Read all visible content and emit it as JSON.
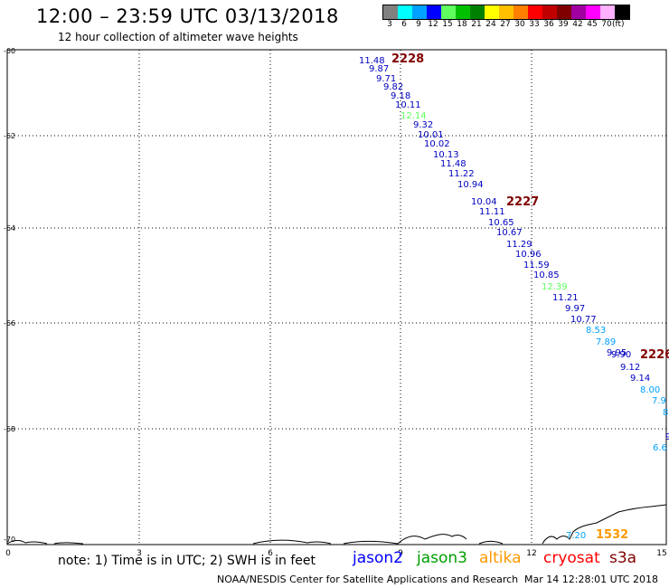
{
  "header": {
    "title": "12:00 – 23:59 UTC 03/13/2018",
    "subtitle": "12 hour collection of altimeter wave heights"
  },
  "legend": {
    "unit": "(ft)",
    "bins": [
      {
        "label": "3",
        "color": "#808080"
      },
      {
        "label": "6",
        "color": "#00ffff"
      },
      {
        "label": "9",
        "color": "#00a0ff"
      },
      {
        "label": "12",
        "color": "#0000ff"
      },
      {
        "label": "15",
        "color": "#60ff60"
      },
      {
        "label": "18",
        "color": "#00c000"
      },
      {
        "label": "21",
        "color": "#008000"
      },
      {
        "label": "24",
        "color": "#ffff00"
      },
      {
        "label": "27",
        "color": "#ffc000"
      },
      {
        "label": "30",
        "color": "#ff8000"
      },
      {
        "label": "33",
        "color": "#ff0000"
      },
      {
        "label": "36",
        "color": "#c00000"
      },
      {
        "label": "39",
        "color": "#800000"
      },
      {
        "label": "42",
        "color": "#a000a0"
      },
      {
        "label": "45",
        "color": "#ff00ff"
      },
      {
        "label": "70",
        "color": "#ffb0ff"
      },
      {
        "label": "",
        "color": "#000000"
      }
    ]
  },
  "axes": {
    "lat_labels": [
      "-60",
      "-62",
      "-64",
      "-66",
      "-68",
      "-70"
    ],
    "lon_labels": [
      "0",
      "3",
      "6",
      "9",
      "12",
      "15"
    ]
  },
  "passes": [
    {
      "time": "2228",
      "color": "#800000"
    },
    {
      "time": "2227",
      "color": "#800000"
    },
    {
      "time": "2226",
      "color": "#800000"
    },
    {
      "time": "1532",
      "color": "#ff9900"
    }
  ],
  "observations": [
    {
      "value": "11.48",
      "color": "#0000c0"
    },
    {
      "value": "9.87",
      "color": "#0000c0"
    },
    {
      "value": "9.71",
      "color": "#0000c0"
    },
    {
      "value": "9.82",
      "color": "#0000c0"
    },
    {
      "value": "9.18",
      "color": "#0000c0"
    },
    {
      "value": "10.11",
      "color": "#0000c0"
    },
    {
      "value": "12.14",
      "color": "#60ff60"
    },
    {
      "value": "9.32",
      "color": "#0000c0"
    },
    {
      "value": "10.01",
      "color": "#0000c0"
    },
    {
      "value": "10.02",
      "color": "#0000c0"
    },
    {
      "value": "10.13",
      "color": "#0000c0"
    },
    {
      "value": "11.48",
      "color": "#0000c0"
    },
    {
      "value": "11.22",
      "color": "#0000c0"
    },
    {
      "value": "10.94",
      "color": "#0000c0"
    },
    {
      "value": "10.04",
      "color": "#0000c0"
    },
    {
      "value": "11.11",
      "color": "#0000c0"
    },
    {
      "value": "10.65",
      "color": "#0000c0"
    },
    {
      "value": "10.67",
      "color": "#0000c0"
    },
    {
      "value": "11.29",
      "color": "#0000c0"
    },
    {
      "value": "10.96",
      "color": "#0000c0"
    },
    {
      "value": "11.59",
      "color": "#0000c0"
    },
    {
      "value": "10.85",
      "color": "#0000c0"
    },
    {
      "value": "12.39",
      "color": "#60ff60"
    },
    {
      "value": "11.21",
      "color": "#0000c0"
    },
    {
      "value": "9.97",
      "color": "#0000c0"
    },
    {
      "value": "10.77",
      "color": "#0000c0"
    },
    {
      "value": "8.53",
      "color": "#00a0ff"
    },
    {
      "value": "7.89",
      "color": "#00a0ff"
    },
    {
      "value": "9.95",
      "color": "#0000c0"
    },
    {
      "value": "9.90",
      "color": "#0000c0"
    },
    {
      "value": "9.12",
      "color": "#0000c0"
    },
    {
      "value": "9.14",
      "color": "#0000c0"
    },
    {
      "value": "8.00",
      "color": "#00a0ff"
    },
    {
      "value": "7.9",
      "color": "#00a0ff"
    },
    {
      "value": "8",
      "color": "#00a0ff"
    },
    {
      "value": "9",
      "color": "#0000c0"
    },
    {
      "value": "6.6",
      "color": "#00a0ff"
    },
    {
      "value": "7.20",
      "color": "#00a0ff"
    }
  ],
  "footer": {
    "note": "note: 1) Time is in UTC; 2) SWH is in feet",
    "satellites": [
      {
        "name": "jason2",
        "color": "#0000ff"
      },
      {
        "name": "jason3",
        "color": "#00a000"
      },
      {
        "name": "altika",
        "color": "#ff9900"
      },
      {
        "name": "cryosat",
        "color": "#ff0000"
      },
      {
        "name": "s3a",
        "color": "#800000"
      }
    ],
    "credit": "NOAA/NESDIS Center for Satellite Applications and Research",
    "timestamp": "Mar 14 12:28:01 UTC 2018"
  }
}
